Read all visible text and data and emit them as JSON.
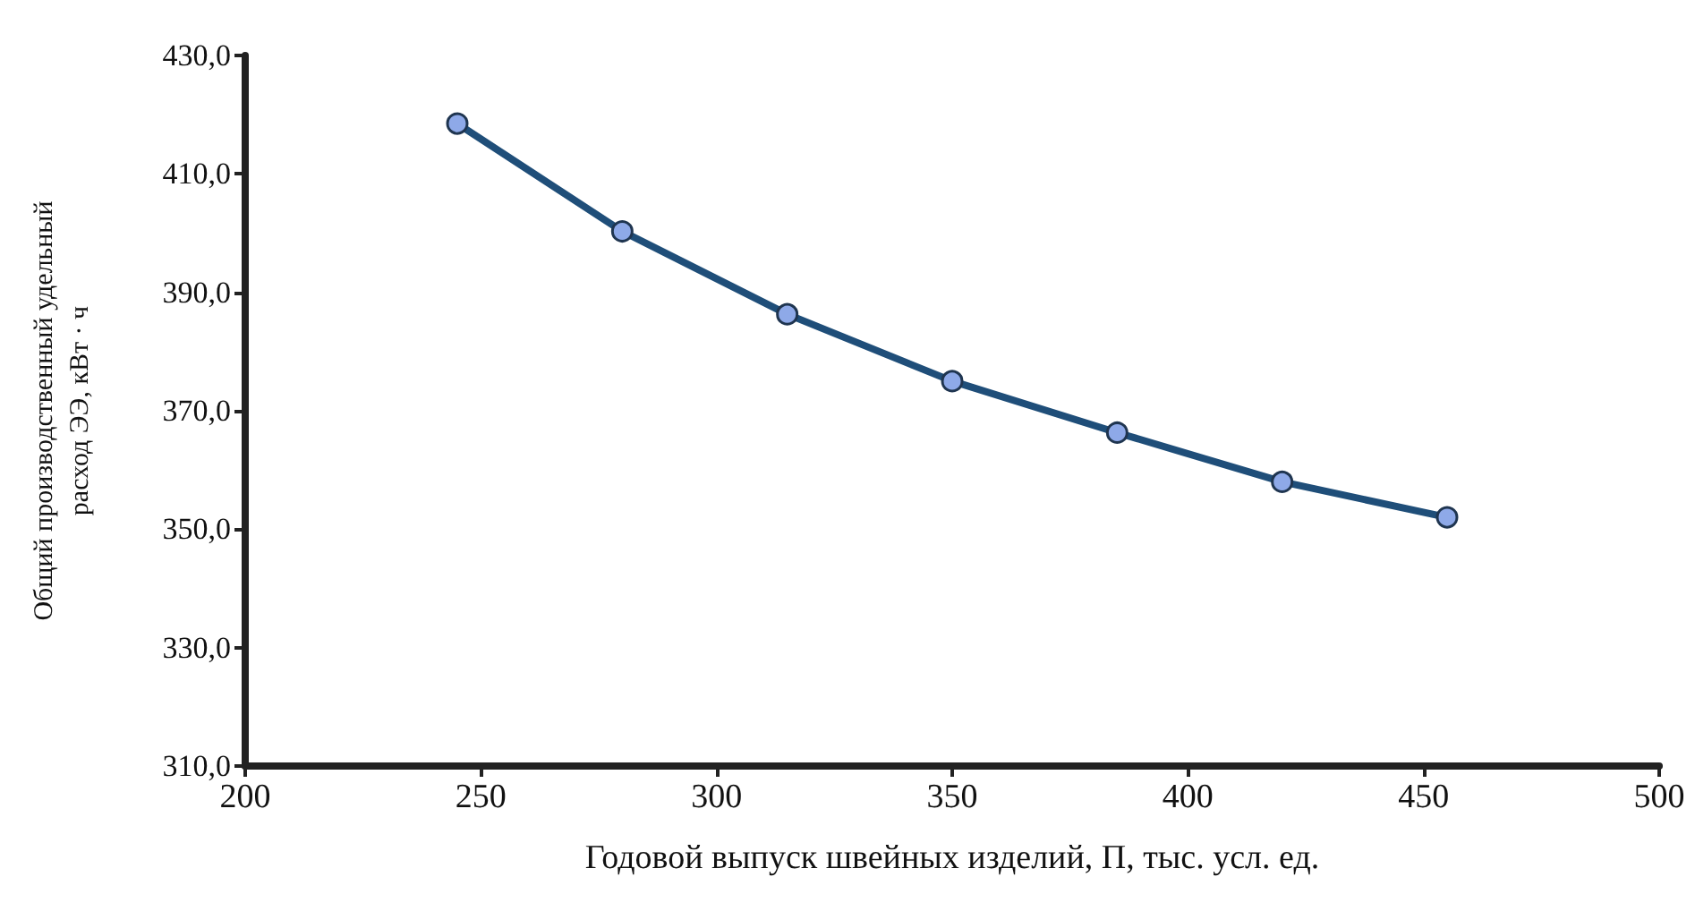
{
  "chart_data": {
    "type": "line",
    "xlabel": "Годовой выпуск швейных изделий, П, тыс. усл. ед.",
    "ylabel": "Общий производственный удельный\nрасход ЭЭ, кВт · ч",
    "x": [
      245,
      280,
      315,
      350,
      385,
      420,
      455
    ],
    "series": [
      {
        "color": "#1f4e79",
        "values": [
          418.5,
          400.3,
          386.3,
          375.0,
          366.3,
          358.0,
          352.0
        ]
      }
    ],
    "xlim": [
      200,
      500
    ],
    "xticks": [
      200,
      250,
      300,
      350,
      400,
      450,
      500
    ],
    "ylim": [
      310,
      430
    ],
    "yticks": [
      {
        "value": 310,
        "label": "310,0"
      },
      {
        "value": 330,
        "label": "330,0"
      },
      {
        "value": 350,
        "label": "350,0"
      },
      {
        "value": 370,
        "label": "370,0"
      },
      {
        "value": 390,
        "label": "390,0"
      },
      {
        "value": 410,
        "label": "410,0"
      },
      {
        "value": 430,
        "label": "430,0"
      }
    ],
    "grid": false,
    "marker": "circle",
    "line_style": "solid"
  }
}
